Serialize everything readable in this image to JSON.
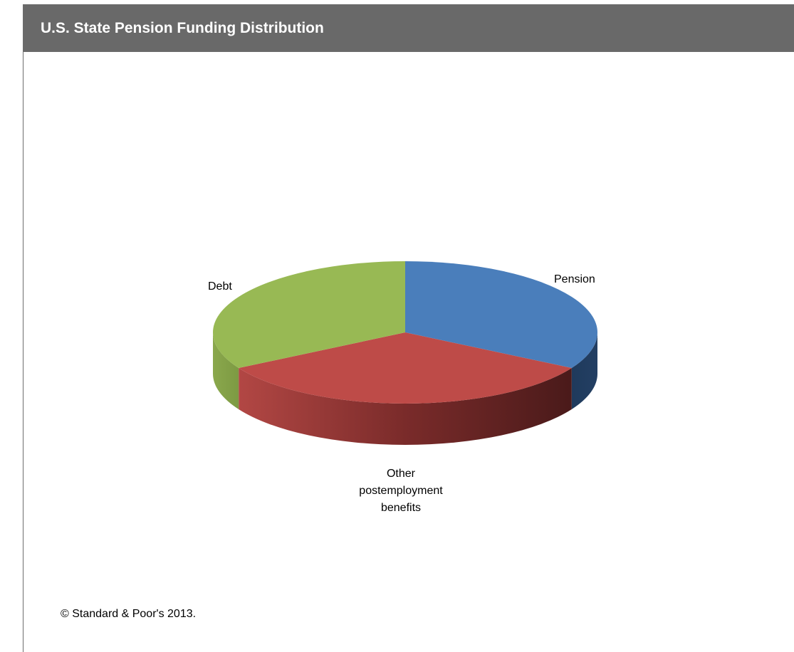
{
  "title": "U.S. State Pension Funding Distribution",
  "footer": "© Standard & Poor's 2013.",
  "chart_data": {
    "type": "pie",
    "style": "3d",
    "title": "U.S. State Pension Funding Distribution",
    "slices": [
      {
        "label": "Pension",
        "value": 33.3,
        "color": "#4a7ebb",
        "side_color": "#1f3a5c"
      },
      {
        "label": "Other postemployment benefits",
        "value": 33.3,
        "color": "#be4b48",
        "side_color": "#a84040"
      },
      {
        "label": "Debt",
        "value": 33.3,
        "color": "#98b954",
        "side_color": "#7f9e45"
      }
    ],
    "legend": "none",
    "labels": [
      "Pension",
      "Other\npostemployment\nbenefits",
      "Debt"
    ]
  }
}
